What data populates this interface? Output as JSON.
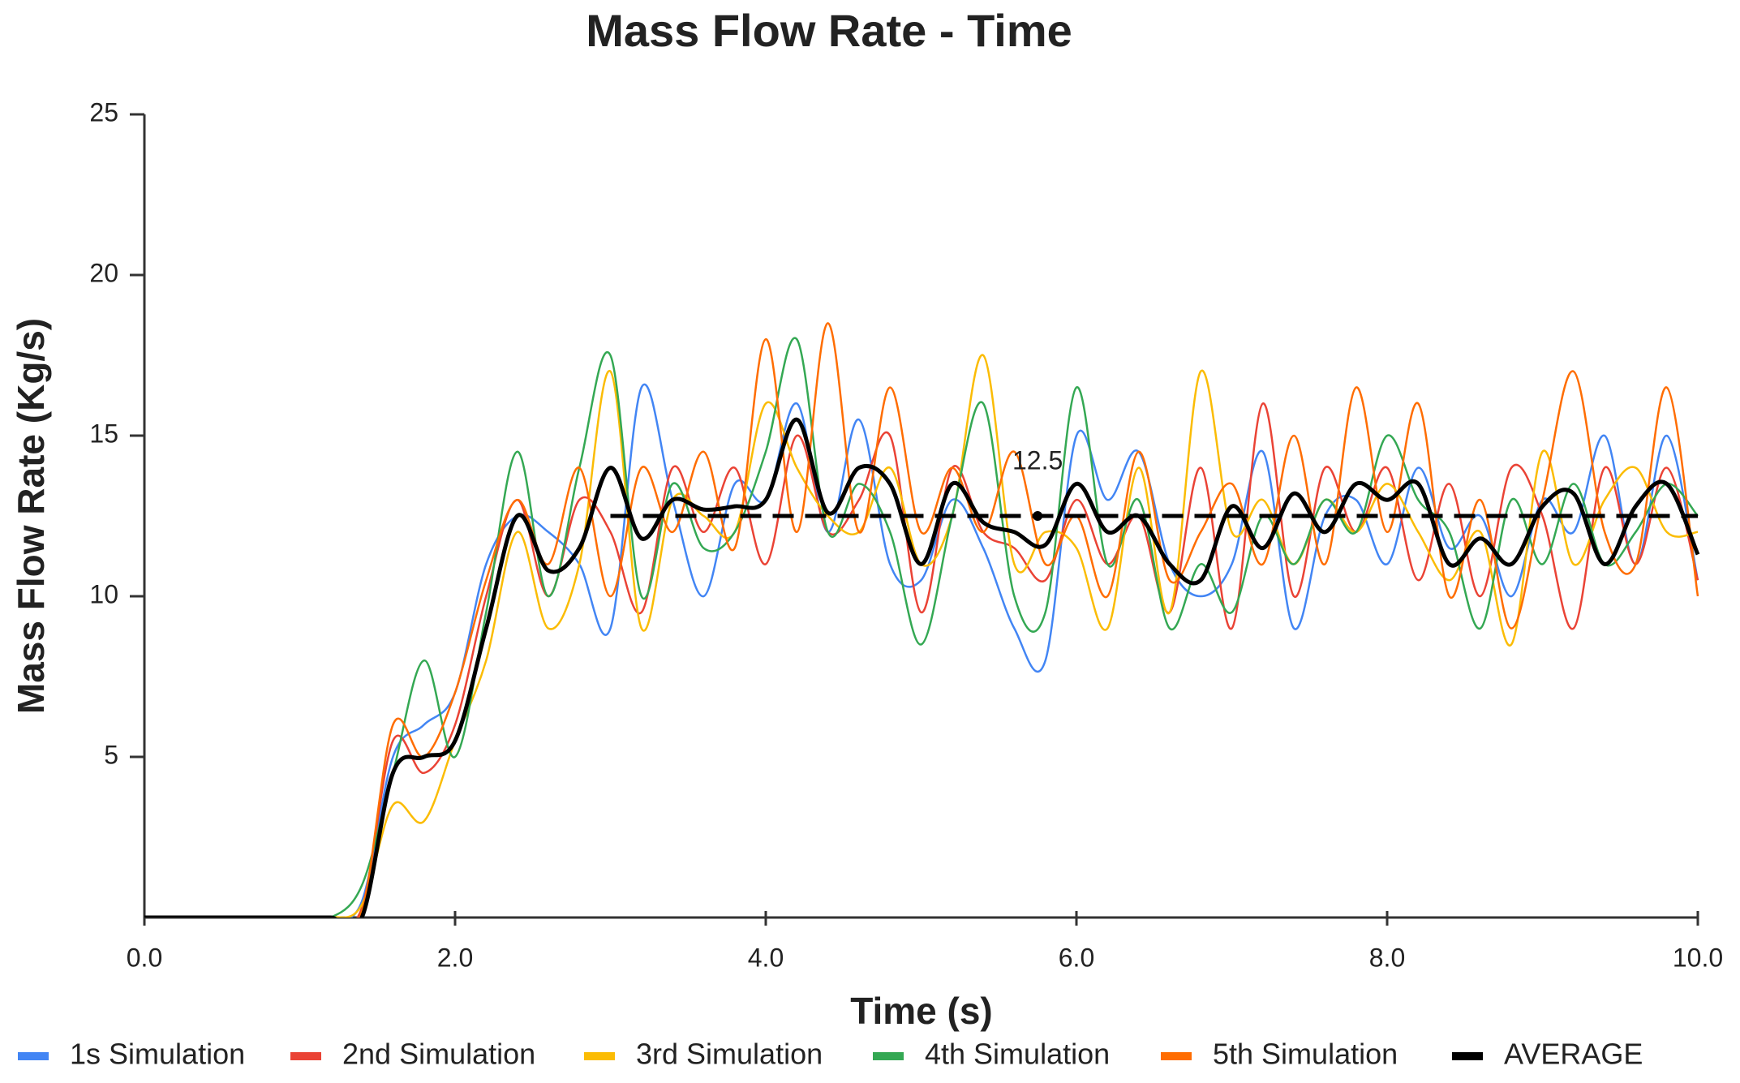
{
  "chart_data": {
    "type": "line",
    "title": "Mass Flow Rate - Time",
    "xlabel": "Time (s)",
    "ylabel": "Mass Flow Rate (Kg/s)",
    "xlim": [
      0,
      10
    ],
    "ylim": [
      0,
      25
    ],
    "xticks": [
      {
        "value": 0,
        "label": "0.0"
      },
      {
        "value": 2,
        "label": "2.0"
      },
      {
        "value": 4,
        "label": "4.0"
      },
      {
        "value": 6,
        "label": "6.0"
      },
      {
        "value": 8,
        "label": "8.0"
      },
      {
        "value": 10,
        "label": "10.0"
      }
    ],
    "yticks": [
      5,
      10,
      15,
      20,
      25
    ],
    "x": [
      0,
      0.2,
      0.4,
      0.6,
      0.8,
      1.0,
      1.2,
      1.4,
      1.6,
      1.8,
      2.0,
      2.2,
      2.4,
      2.6,
      2.8,
      3.0,
      3.2,
      3.4,
      3.6,
      3.8,
      4.0,
      4.2,
      4.4,
      4.6,
      4.8,
      5.0,
      5.2,
      5.4,
      5.6,
      5.8,
      6.0,
      6.2,
      6.4,
      6.6,
      6.8,
      7.0,
      7.2,
      7.4,
      7.6,
      7.8,
      8.0,
      8.2,
      8.4,
      8.6,
      8.8,
      9.0,
      9.2,
      9.4,
      9.6,
      9.8,
      10.0
    ],
    "series": [
      {
        "name": "1s Simulation",
        "color": "#4285f4",
        "values": [
          0,
          0,
          0,
          0,
          0,
          0,
          0,
          0.5,
          5,
          6,
          7,
          11,
          12.5,
          12,
          11,
          9,
          16.5,
          13,
          10,
          13.5,
          13,
          16,
          12,
          15.5,
          11,
          10.5,
          13,
          11.5,
          9,
          8,
          15,
          13,
          14.5,
          11,
          10,
          11,
          14.5,
          9,
          12.5,
          13,
          11,
          14,
          11.5,
          12.5,
          10,
          13,
          12,
          15,
          11,
          15,
          10.5
        ]
      },
      {
        "name": "2nd Simulation",
        "color": "#ea4335",
        "values": [
          0,
          0,
          0,
          0,
          0,
          0,
          0,
          0.3,
          5.5,
          4.5,
          6,
          10,
          13,
          10,
          13,
          12,
          9.5,
          14,
          12,
          14,
          11,
          15,
          12,
          13,
          15,
          9.5,
          14,
          12,
          11.5,
          10.5,
          13,
          11,
          12.5,
          9.5,
          14,
          9,
          16,
          10,
          14,
          12,
          14,
          10.5,
          13.5,
          10,
          14,
          12.5,
          9,
          14,
          11,
          14,
          10.5
        ]
      },
      {
        "name": "3rd Simulation",
        "color": "#fbbc04",
        "values": [
          0,
          0,
          0,
          0,
          0,
          0,
          0,
          0.4,
          3.5,
          3,
          5.5,
          8,
          12,
          9,
          11,
          17,
          9,
          13,
          12.5,
          12,
          16,
          14,
          12.5,
          12,
          14,
          11,
          12.5,
          17.5,
          11,
          12,
          11.5,
          9,
          14,
          9.5,
          17,
          12,
          13,
          11,
          13,
          12,
          13.5,
          12,
          10.5,
          12,
          8.5,
          14.5,
          11,
          13,
          14,
          12,
          12
        ]
      },
      {
        "name": "4th Simulation",
        "color": "#34a853",
        "values": [
          0,
          0,
          0,
          0,
          0,
          0,
          0,
          1,
          4.5,
          8,
          5,
          9.5,
          14.5,
          10,
          14,
          17.5,
          10,
          13.5,
          11.5,
          12,
          14.5,
          18,
          12,
          13.5,
          12,
          8.5,
          12.5,
          16,
          10,
          9.5,
          16.5,
          11,
          13,
          9,
          11,
          9.5,
          12.5,
          11,
          13,
          12,
          15,
          13,
          12,
          9,
          13,
          11,
          13.5,
          11,
          12,
          13.5,
          12.5
        ]
      },
      {
        "name": "5th Simulation",
        "color": "#ff6d01",
        "values": [
          0,
          0,
          0,
          0,
          0,
          0,
          0,
          0.2,
          6,
          5,
          7,
          10.5,
          13,
          11,
          14,
          10,
          14,
          12,
          14.5,
          11.5,
          18,
          12,
          18.5,
          12,
          16.5,
          12,
          14,
          12,
          14.5,
          11,
          12.5,
          10,
          14.5,
          10.5,
          12,
          13.5,
          11,
          15,
          11,
          16.5,
          12,
          16,
          10,
          13,
          9,
          13,
          17,
          12,
          11,
          16.5,
          10
        ]
      },
      {
        "name": "AVERAGE",
        "color": "#000000",
        "values": [
          0,
          0,
          0,
          0,
          0,
          0,
          0,
          0,
          4.5,
          5,
          5.5,
          9,
          12.5,
          10.8,
          11.5,
          14,
          11.8,
          13,
          12.7,
          12.8,
          13,
          15.5,
          12.6,
          14,
          13.5,
          11,
          13.5,
          12.3,
          12,
          11.6,
          13.5,
          12,
          12.5,
          11,
          10.5,
          12.8,
          11.5,
          13.2,
          12,
          13.5,
          13,
          13.5,
          11,
          11.8,
          11,
          12.8,
          13.2,
          11,
          12.8,
          13.5,
          11.3
        ]
      }
    ],
    "reference_line": {
      "y": 12.5,
      "x": [
        3,
        10
      ],
      "label_x": 5.75,
      "color": "#000000"
    },
    "legend": "bottom"
  }
}
